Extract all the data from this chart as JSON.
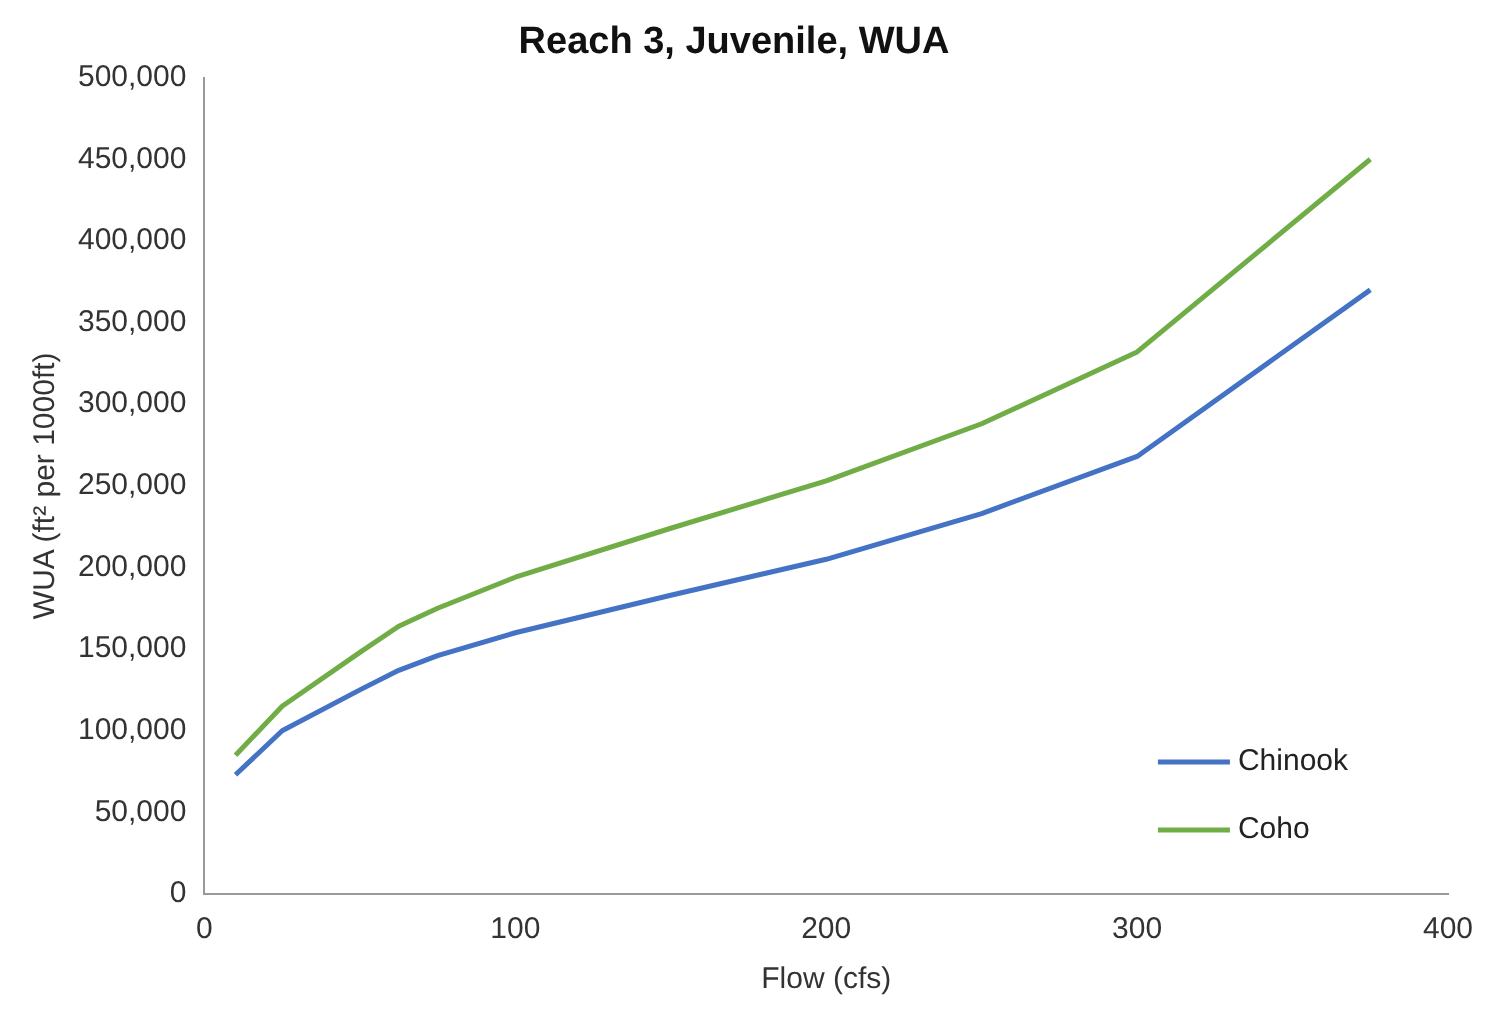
{
  "chart_data": {
    "type": "line",
    "title": "Reach 3, Juvenile, WUA",
    "xlabel": "Flow (cfs)",
    "ylabel": "WUA (ft² per 1000ft)",
    "x": [
      10,
      25,
      50,
      62.5,
      75,
      100,
      150,
      200,
      250,
      300,
      375
    ],
    "series": [
      {
        "name": "Chinook",
        "color": "#4472c4",
        "values": [
          73000,
          100000,
          125000,
          137000,
          146000,
          160000,
          183000,
          205000,
          233000,
          268000,
          370000
        ]
      },
      {
        "name": "Coho",
        "color": "#70ad47",
        "values": [
          85000,
          115000,
          148000,
          164000,
          175000,
          194000,
          224000,
          253000,
          288000,
          332000,
          450000
        ]
      }
    ],
    "xlim": [
      0,
      400
    ],
    "xticks": [
      0,
      100,
      200,
      300,
      400
    ],
    "ylim": [
      0,
      500000
    ],
    "yticks": [
      0,
      {
        "value": 50000,
        "label": "50,000"
      },
      {
        "value": 100000,
        "label": "100,000"
      },
      {
        "value": 150000,
        "label": "150,000"
      },
      {
        "value": 200000,
        "label": "200,000"
      },
      {
        "value": 250000,
        "label": "250,000"
      },
      {
        "value": 300000,
        "label": "300,000"
      },
      {
        "value": 350000,
        "label": "350,000"
      },
      {
        "value": 400000,
        "label": "400,000"
      },
      {
        "value": 450000,
        "label": "450,000"
      },
      {
        "value": 500000,
        "label": "500,000"
      }
    ],
    "grid": false,
    "legend": "bottom right",
    "marker": "none",
    "line_style": "solid"
  }
}
